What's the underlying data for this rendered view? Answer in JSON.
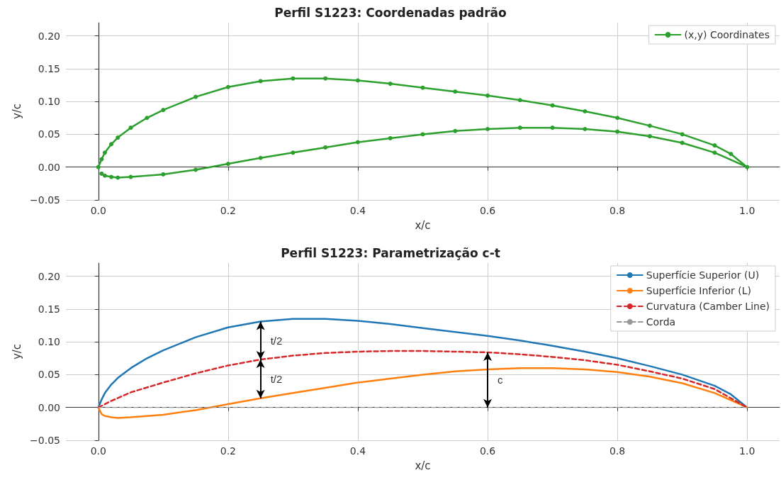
{
  "chart_data": [
    {
      "type": "line",
      "title": "Perfil S1223: Coordenadas padrão",
      "xlabel": "x/c",
      "ylabel": "y/c",
      "xlim": [
        -0.05,
        1.05
      ],
      "xticks": [
        {
          "value": 0,
          "label": "0.0"
        },
        {
          "value": 0.2,
          "label": "0.2"
        },
        {
          "value": 0.4,
          "label": "0.4"
        },
        {
          "value": 0.6,
          "label": "0.6"
        },
        {
          "value": 0.8,
          "label": "0.8"
        },
        {
          "value": 1,
          "label": "1.0"
        }
      ],
      "ylim": [
        -0.05,
        0.22
      ],
      "yticks": [
        {
          "value": -0.05,
          "label": "−0.05"
        },
        {
          "value": 0,
          "label": "0.00"
        },
        {
          "value": 0.05,
          "label": "0.05"
        },
        {
          "value": 0.1,
          "label": "0.10"
        },
        {
          "value": 0.15,
          "label": "0.15"
        },
        {
          "value": 0.2,
          "label": "0.20"
        }
      ],
      "grid": true,
      "legend": "top right",
      "marker": "circle",
      "series": [
        {
          "name": "(x,y) Coordinates",
          "color": "#2ca02c",
          "x": [
            0,
            0.005,
            0.01,
            0.02,
            0.03,
            0.05,
            0.075,
            0.1,
            0.15,
            0.2,
            0.25,
            0.3,
            0.35,
            0.4,
            0.45,
            0.5,
            0.55,
            0.6,
            0.65,
            0.7,
            0.75,
            0.8,
            0.85,
            0.9,
            0.95,
            0.975,
            1,
            0.95,
            0.9,
            0.85,
            0.8,
            0.75,
            0.7,
            0.65,
            0.6,
            0.55,
            0.5,
            0.45,
            0.4,
            0.35,
            0.3,
            0.25,
            0.2,
            0.15,
            0.1,
            0.05,
            0.03,
            0.02,
            0.01,
            0.005
          ],
          "values": [
            0,
            0.012,
            0.022,
            0.035,
            0.045,
            0.06,
            0.075,
            0.087,
            0.107,
            0.122,
            0.131,
            0.135,
            0.135,
            0.132,
            0.127,
            0.121,
            0.115,
            0.109,
            0.102,
            0.094,
            0.085,
            0.075,
            0.063,
            0.05,
            0.033,
            0.02,
            0,
            0.022,
            0.037,
            0.047,
            0.054,
            0.058,
            0.06,
            0.06,
            0.058,
            0.055,
            0.05,
            0.044,
            0.038,
            0.03,
            0.022,
            0.014,
            0.005,
            -0.004,
            -0.011,
            -0.015,
            -0.016,
            -0.015,
            -0.013,
            -0.01
          ]
        }
      ]
    },
    {
      "type": "line",
      "title": "Perfil S1223: Parametrização c-t",
      "xlabel": "x/c",
      "ylabel": "y/c",
      "xlim": [
        -0.05,
        1.05
      ],
      "xticks": [
        {
          "value": 0,
          "label": "0.0"
        },
        {
          "value": 0.2,
          "label": "0.2"
        },
        {
          "value": 0.4,
          "label": "0.4"
        },
        {
          "value": 0.6,
          "label": "0.6"
        },
        {
          "value": 0.8,
          "label": "0.8"
        },
        {
          "value": 1,
          "label": "1.0"
        }
      ],
      "ylim": [
        -0.05,
        0.22
      ],
      "yticks": [
        {
          "value": -0.05,
          "label": "−0.05"
        },
        {
          "value": 0,
          "label": "0.00"
        },
        {
          "value": 0.05,
          "label": "0.05"
        },
        {
          "value": 0.1,
          "label": "0.10"
        },
        {
          "value": 0.15,
          "label": "0.15"
        },
        {
          "value": 0.2,
          "label": "0.20"
        }
      ],
      "grid": true,
      "legend": "top right",
      "marker": "none",
      "series": [
        {
          "name": "Superfície Superior (U)",
          "color": "#1f77b4",
          "line_style": "solid",
          "x": [
            0,
            0.005,
            0.01,
            0.02,
            0.03,
            0.05,
            0.075,
            0.1,
            0.15,
            0.2,
            0.25,
            0.3,
            0.35,
            0.4,
            0.45,
            0.5,
            0.55,
            0.6,
            0.65,
            0.7,
            0.75,
            0.8,
            0.85,
            0.9,
            0.95,
            0.975,
            1
          ],
          "values": [
            0,
            0.012,
            0.022,
            0.035,
            0.045,
            0.06,
            0.075,
            0.087,
            0.107,
            0.122,
            0.131,
            0.135,
            0.135,
            0.132,
            0.127,
            0.121,
            0.115,
            0.109,
            0.102,
            0.094,
            0.085,
            0.075,
            0.063,
            0.05,
            0.033,
            0.02,
            0
          ]
        },
        {
          "name": "Superfície Inferior (L)",
          "color": "#ff7f0e",
          "line_style": "solid",
          "x": [
            0,
            0.005,
            0.01,
            0.02,
            0.03,
            0.05,
            0.1,
            0.15,
            0.2,
            0.25,
            0.3,
            0.35,
            0.4,
            0.45,
            0.5,
            0.55,
            0.6,
            0.65,
            0.7,
            0.75,
            0.8,
            0.85,
            0.9,
            0.95,
            1
          ],
          "values": [
            0,
            -0.01,
            -0.013,
            -0.015,
            -0.016,
            -0.015,
            -0.011,
            -0.004,
            0.005,
            0.014,
            0.022,
            0.03,
            0.038,
            0.044,
            0.05,
            0.055,
            0.058,
            0.06,
            0.06,
            0.058,
            0.054,
            0.047,
            0.037,
            0.022,
            0
          ]
        },
        {
          "name": "Curvatura (Camber Line)",
          "color": "#d62728",
          "line_style": "dashed",
          "x": [
            0,
            0.01,
            0.02,
            0.05,
            0.1,
            0.15,
            0.2,
            0.25,
            0.3,
            0.35,
            0.4,
            0.45,
            0.5,
            0.55,
            0.6,
            0.65,
            0.7,
            0.75,
            0.8,
            0.85,
            0.9,
            0.95,
            1
          ],
          "values": [
            0,
            0.005,
            0.01,
            0.023,
            0.038,
            0.052,
            0.064,
            0.073,
            0.079,
            0.083,
            0.085,
            0.086,
            0.086,
            0.085,
            0.084,
            0.081,
            0.077,
            0.072,
            0.065,
            0.055,
            0.044,
            0.028,
            0
          ]
        },
        {
          "name": "Corda",
          "color": "#999999",
          "line_style": "dashed",
          "x": [
            0,
            1
          ],
          "values": [
            0,
            0
          ]
        }
      ],
      "annotations": [
        "t/2",
        "t/2",
        "c"
      ]
    }
  ]
}
